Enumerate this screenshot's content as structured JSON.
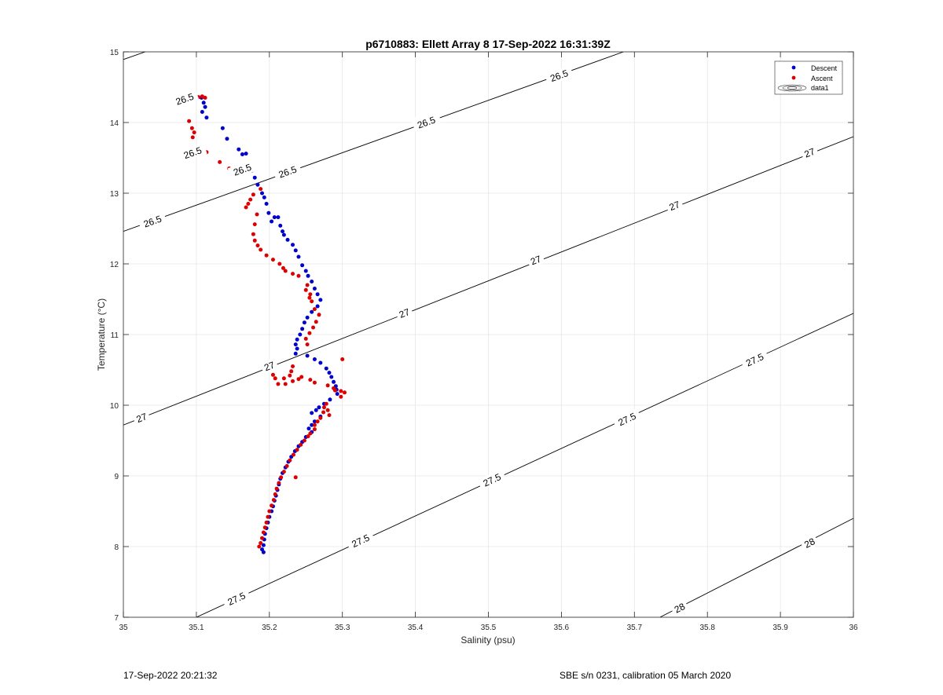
{
  "chart_data": {
    "type": "scatter",
    "title": "p6710883: Ellett Array 8 17-Sep-2022 16:31:39Z",
    "xlabel": "Salinity (psu)",
    "ylabel": "Temperature (°C)",
    "xlim": [
      35,
      36
    ],
    "ylim": [
      7,
      15
    ],
    "xticks": [
      "35",
      "35.1",
      "35.2",
      "35.3",
      "35.4",
      "35.5",
      "35.6",
      "35.7",
      "35.8",
      "35.9",
      "36"
    ],
    "yticks": [
      "7",
      "8",
      "9",
      "10",
      "11",
      "12",
      "13",
      "14",
      "15"
    ],
    "grid": true,
    "legend_position": "top-right",
    "legend": [
      "Descent",
      "Ascent",
      "data1"
    ],
    "colors": {
      "descent": "#0000cc",
      "ascent": "#dd0000",
      "contour": "#000000",
      "grid": "#e6e6e6"
    },
    "series": [
      {
        "name": "Descent",
        "points": [
          [
            35.107,
            14.35
          ],
          [
            35.11,
            14.28
          ],
          [
            35.112,
            14.22
          ],
          [
            35.108,
            14.15
          ],
          [
            35.114,
            14.07
          ],
          [
            35.136,
            13.92
          ],
          [
            35.142,
            13.77
          ],
          [
            35.158,
            13.62
          ],
          [
            35.163,
            13.55
          ],
          [
            35.168,
            13.56
          ],
          [
            35.171,
            13.38
          ],
          [
            35.176,
            13.32
          ],
          [
            35.18,
            13.22
          ],
          [
            35.184,
            13.12
          ],
          [
            35.19,
            13.0
          ],
          [
            35.193,
            12.94
          ],
          [
            35.196,
            12.85
          ],
          [
            35.199,
            12.72
          ],
          [
            35.203,
            12.6
          ],
          [
            35.207,
            12.66
          ],
          [
            35.212,
            12.66
          ],
          [
            35.215,
            12.54
          ],
          [
            35.218,
            12.46
          ],
          [
            35.22,
            12.41
          ],
          [
            35.225,
            12.34
          ],
          [
            35.232,
            12.27
          ],
          [
            35.236,
            12.19
          ],
          [
            35.24,
            12.1
          ],
          [
            35.245,
            11.98
          ],
          [
            35.25,
            11.9
          ],
          [
            35.253,
            11.83
          ],
          [
            35.258,
            11.75
          ],
          [
            35.262,
            11.65
          ],
          [
            35.266,
            11.57
          ],
          [
            35.27,
            11.49
          ],
          [
            35.266,
            11.4
          ],
          [
            35.258,
            11.32
          ],
          [
            35.252,
            11.24
          ],
          [
            35.248,
            11.17
          ],
          [
            35.245,
            11.08
          ],
          [
            35.242,
            11.0
          ],
          [
            35.238,
            10.93
          ],
          [
            35.236,
            10.86
          ],
          [
            35.238,
            10.8
          ],
          [
            35.236,
            10.73
          ],
          [
            35.252,
            10.7
          ],
          [
            35.262,
            10.65
          ],
          [
            35.27,
            10.6
          ],
          [
            35.278,
            10.52
          ],
          [
            35.282,
            10.46
          ],
          [
            35.285,
            10.4
          ],
          [
            35.288,
            10.33
          ],
          [
            35.291,
            10.27
          ],
          [
            35.292,
            10.22
          ],
          [
            35.293,
            10.16
          ],
          [
            35.283,
            10.08
          ],
          [
            35.275,
            10.02
          ],
          [
            35.268,
            9.97
          ],
          [
            35.264,
            9.93
          ],
          [
            35.258,
            9.89
          ],
          [
            35.27,
            9.84
          ],
          [
            35.262,
            9.77
          ],
          [
            35.258,
            9.72
          ],
          [
            35.254,
            9.67
          ],
          [
            35.258,
            9.62
          ],
          [
            35.25,
            9.55
          ],
          [
            35.245,
            9.48
          ],
          [
            35.24,
            9.42
          ],
          [
            35.235,
            9.35
          ],
          [
            35.23,
            9.27
          ],
          [
            35.226,
            9.2
          ],
          [
            35.222,
            9.12
          ],
          [
            35.218,
            9.04
          ],
          [
            35.215,
            8.96
          ],
          [
            35.213,
            8.88
          ],
          [
            35.211,
            8.8
          ],
          [
            35.209,
            8.72
          ],
          [
            35.207,
            8.65
          ],
          [
            35.205,
            8.57
          ],
          [
            35.203,
            8.5
          ],
          [
            35.2,
            8.42
          ],
          [
            35.198,
            8.34
          ],
          [
            35.196,
            8.26
          ],
          [
            35.194,
            8.18
          ],
          [
            35.193,
            8.1
          ],
          [
            35.192,
            8.02
          ],
          [
            35.19,
            7.96
          ],
          [
            35.192,
            7.92
          ]
        ]
      },
      {
        "name": "Ascent",
        "points": [
          [
            35.098,
            14.35
          ],
          [
            35.103,
            14.36
          ],
          [
            35.108,
            14.37
          ],
          [
            35.112,
            14.35
          ],
          [
            35.09,
            14.02
          ],
          [
            35.094,
            13.92
          ],
          [
            35.097,
            13.86
          ],
          [
            35.095,
            13.79
          ],
          [
            35.1,
            13.62
          ],
          [
            35.106,
            13.57
          ],
          [
            35.114,
            13.58
          ],
          [
            35.132,
            13.44
          ],
          [
            35.145,
            13.35
          ],
          [
            35.152,
            13.25
          ],
          [
            35.188,
            13.06
          ],
          [
            35.178,
            12.98
          ],
          [
            35.174,
            12.91
          ],
          [
            35.171,
            12.85
          ],
          [
            35.168,
            12.8
          ],
          [
            35.183,
            12.7
          ],
          [
            35.18,
            12.56
          ],
          [
            35.178,
            12.42
          ],
          [
            35.18,
            12.33
          ],
          [
            35.184,
            12.26
          ],
          [
            35.188,
            12.2
          ],
          [
            35.196,
            12.12
          ],
          [
            35.205,
            12.06
          ],
          [
            35.214,
            12.0
          ],
          [
            35.219,
            11.94
          ],
          [
            35.222,
            11.9
          ],
          [
            35.232,
            11.86
          ],
          [
            35.24,
            11.83
          ],
          [
            35.252,
            11.7
          ],
          [
            35.25,
            11.63
          ],
          [
            35.256,
            11.57
          ],
          [
            35.255,
            11.52
          ],
          [
            35.258,
            11.47
          ],
          [
            35.262,
            11.36
          ],
          [
            35.268,
            11.28
          ],
          [
            35.264,
            11.18
          ],
          [
            35.26,
            11.1
          ],
          [
            35.255,
            11.02
          ],
          [
            35.25,
            10.94
          ],
          [
            35.252,
            10.86
          ],
          [
            35.232,
            10.55
          ],
          [
            35.23,
            10.48
          ],
          [
            35.228,
            10.42
          ],
          [
            35.24,
            10.37
          ],
          [
            35.232,
            10.34
          ],
          [
            35.22,
            10.38
          ],
          [
            35.205,
            10.43
          ],
          [
            35.208,
            10.38
          ],
          [
            35.212,
            10.3
          ],
          [
            35.222,
            10.3
          ],
          [
            35.244,
            10.4
          ],
          [
            35.256,
            10.36
          ],
          [
            35.262,
            10.32
          ],
          [
            35.28,
            10.28
          ],
          [
            35.288,
            10.24
          ],
          [
            35.29,
            10.21
          ],
          [
            35.298,
            10.2
          ],
          [
            35.303,
            10.18
          ],
          [
            35.298,
            10.12
          ],
          [
            35.3,
            10.65
          ],
          [
            35.278,
            10.02
          ],
          [
            35.275,
            9.97
          ],
          [
            35.28,
            9.93
          ],
          [
            35.274,
            9.9
          ],
          [
            35.282,
            9.86
          ],
          [
            35.27,
            9.82
          ],
          [
            35.266,
            9.77
          ],
          [
            35.262,
            9.72
          ],
          [
            35.262,
            9.66
          ],
          [
            35.256,
            9.6
          ],
          [
            35.253,
            9.56
          ],
          [
            35.248,
            9.5
          ],
          [
            35.243,
            9.44
          ],
          [
            35.238,
            9.37
          ],
          [
            35.233,
            9.3
          ],
          [
            35.228,
            9.22
          ],
          [
            35.236,
            8.98
          ],
          [
            35.224,
            9.14
          ],
          [
            35.22,
            9.06
          ],
          [
            35.216,
            8.98
          ],
          [
            35.213,
            8.9
          ],
          [
            35.21,
            8.82
          ],
          [
            35.208,
            8.74
          ],
          [
            35.206,
            8.66
          ],
          [
            35.203,
            8.58
          ],
          [
            35.2,
            8.5
          ],
          [
            35.198,
            8.42
          ],
          [
            35.196,
            8.34
          ],
          [
            35.194,
            8.27
          ],
          [
            35.192,
            8.2
          ],
          [
            35.19,
            8.12
          ],
          [
            35.188,
            8.05
          ],
          [
            35.186,
            8.0
          ]
        ]
      }
    ],
    "contours": [
      {
        "level": "26.5",
        "line": [
          [
            34.98,
            14.82
          ],
          [
            35.03,
            15.0
          ]
        ],
        "label_points": [
          [
            35.084,
            14.33
          ],
          [
            35.415,
            14.04
          ],
          [
            35.095,
            13.57
          ],
          [
            35.163,
            13.33
          ]
        ]
      },
      {
        "level": "26.5",
        "line": [
          [
            35.0,
            12.46
          ],
          [
            35.685,
            15.0
          ]
        ],
        "label_points": [
          [
            35.04,
            12.6
          ],
          [
            35.225,
            13.3
          ],
          [
            35.415,
            14.0
          ],
          [
            35.597,
            14.66
          ]
        ]
      },
      {
        "level": "27",
        "line": [
          [
            35.0,
            9.72
          ],
          [
            36.0,
            13.8
          ]
        ],
        "label_points": [
          [
            35.025,
            9.82
          ],
          [
            35.2,
            10.55
          ],
          [
            35.385,
            11.3
          ],
          [
            35.565,
            12.05
          ],
          [
            35.755,
            12.82
          ],
          [
            35.94,
            13.57
          ]
        ]
      },
      {
        "level": "27.5",
        "line": [
          [
            35.1,
            7.0
          ],
          [
            36.0,
            11.3
          ]
        ],
        "label_points": [
          [
            35.155,
            7.26
          ],
          [
            35.325,
            8.08
          ],
          [
            35.505,
            8.94
          ],
          [
            35.69,
            9.8
          ],
          [
            35.865,
            10.64
          ]
        ]
      },
      {
        "level": "28",
        "line": [
          [
            35.735,
            7.0
          ],
          [
            36.0,
            8.4
          ]
        ],
        "label_points": [
          [
            35.762,
            7.13
          ],
          [
            35.94,
            8.05
          ]
        ]
      }
    ]
  },
  "footer": {
    "timestamp": "17-Sep-2022 20:21:32",
    "instrument": "SBE s/n 0231, calibration 05 March 2020"
  }
}
